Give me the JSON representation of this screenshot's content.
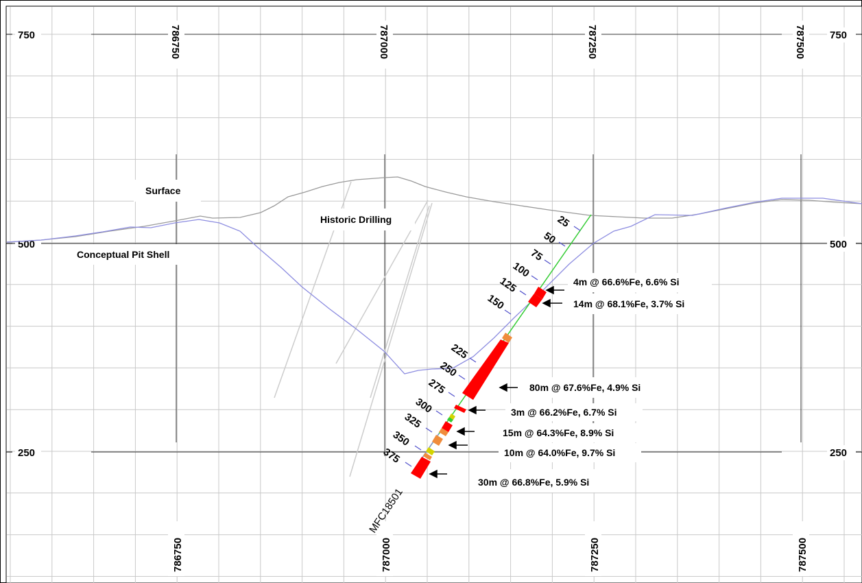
{
  "axes": {
    "elevation_labels": {
      "top": "750",
      "middle": "500",
      "bottom": "250"
    },
    "easting_labels": [
      "786750",
      "787000",
      "787250",
      "787500"
    ]
  },
  "labels": {
    "surface": "Surface",
    "historic_drilling": "Historic Drilling",
    "pit_shell": "Conceptual Pit Shell",
    "hole_id": "MFC18501"
  },
  "depth_marks": [
    "25",
    "50",
    "75",
    "100",
    "125",
    "150",
    "225",
    "250",
    "275",
    "300",
    "325",
    "350",
    "375"
  ],
  "intercepts": [
    {
      "id": "i1",
      "text": "4m @ 66.6%Fe, 6.6% Si"
    },
    {
      "id": "i2",
      "text": "14m @ 68.1%Fe, 3.7% Si"
    },
    {
      "id": "i3",
      "text": "80m @ 67.6%Fe, 4.9% Si"
    },
    {
      "id": "i4",
      "text": "3m @ 66.2%Fe, 6.7% Si"
    },
    {
      "id": "i5",
      "text": "15m @ 64.3%Fe, 8.9% Si"
    },
    {
      "id": "i6",
      "text": "10m @ 64.0%Fe, 9.7% Si"
    },
    {
      "id": "i7",
      "text": "30m @ 66.8%Fe, 5.9% Si"
    }
  ],
  "colors": {
    "grid": "#c8c8c8",
    "major_grid": "#333333",
    "surface_line": "#999999",
    "pit_shell": "#8c8ce0",
    "hole_trace": "#33cc33",
    "high_grade": "#ff0000",
    "medium_grade": "#f08c3c",
    "low_grade": "#d4d400"
  }
}
